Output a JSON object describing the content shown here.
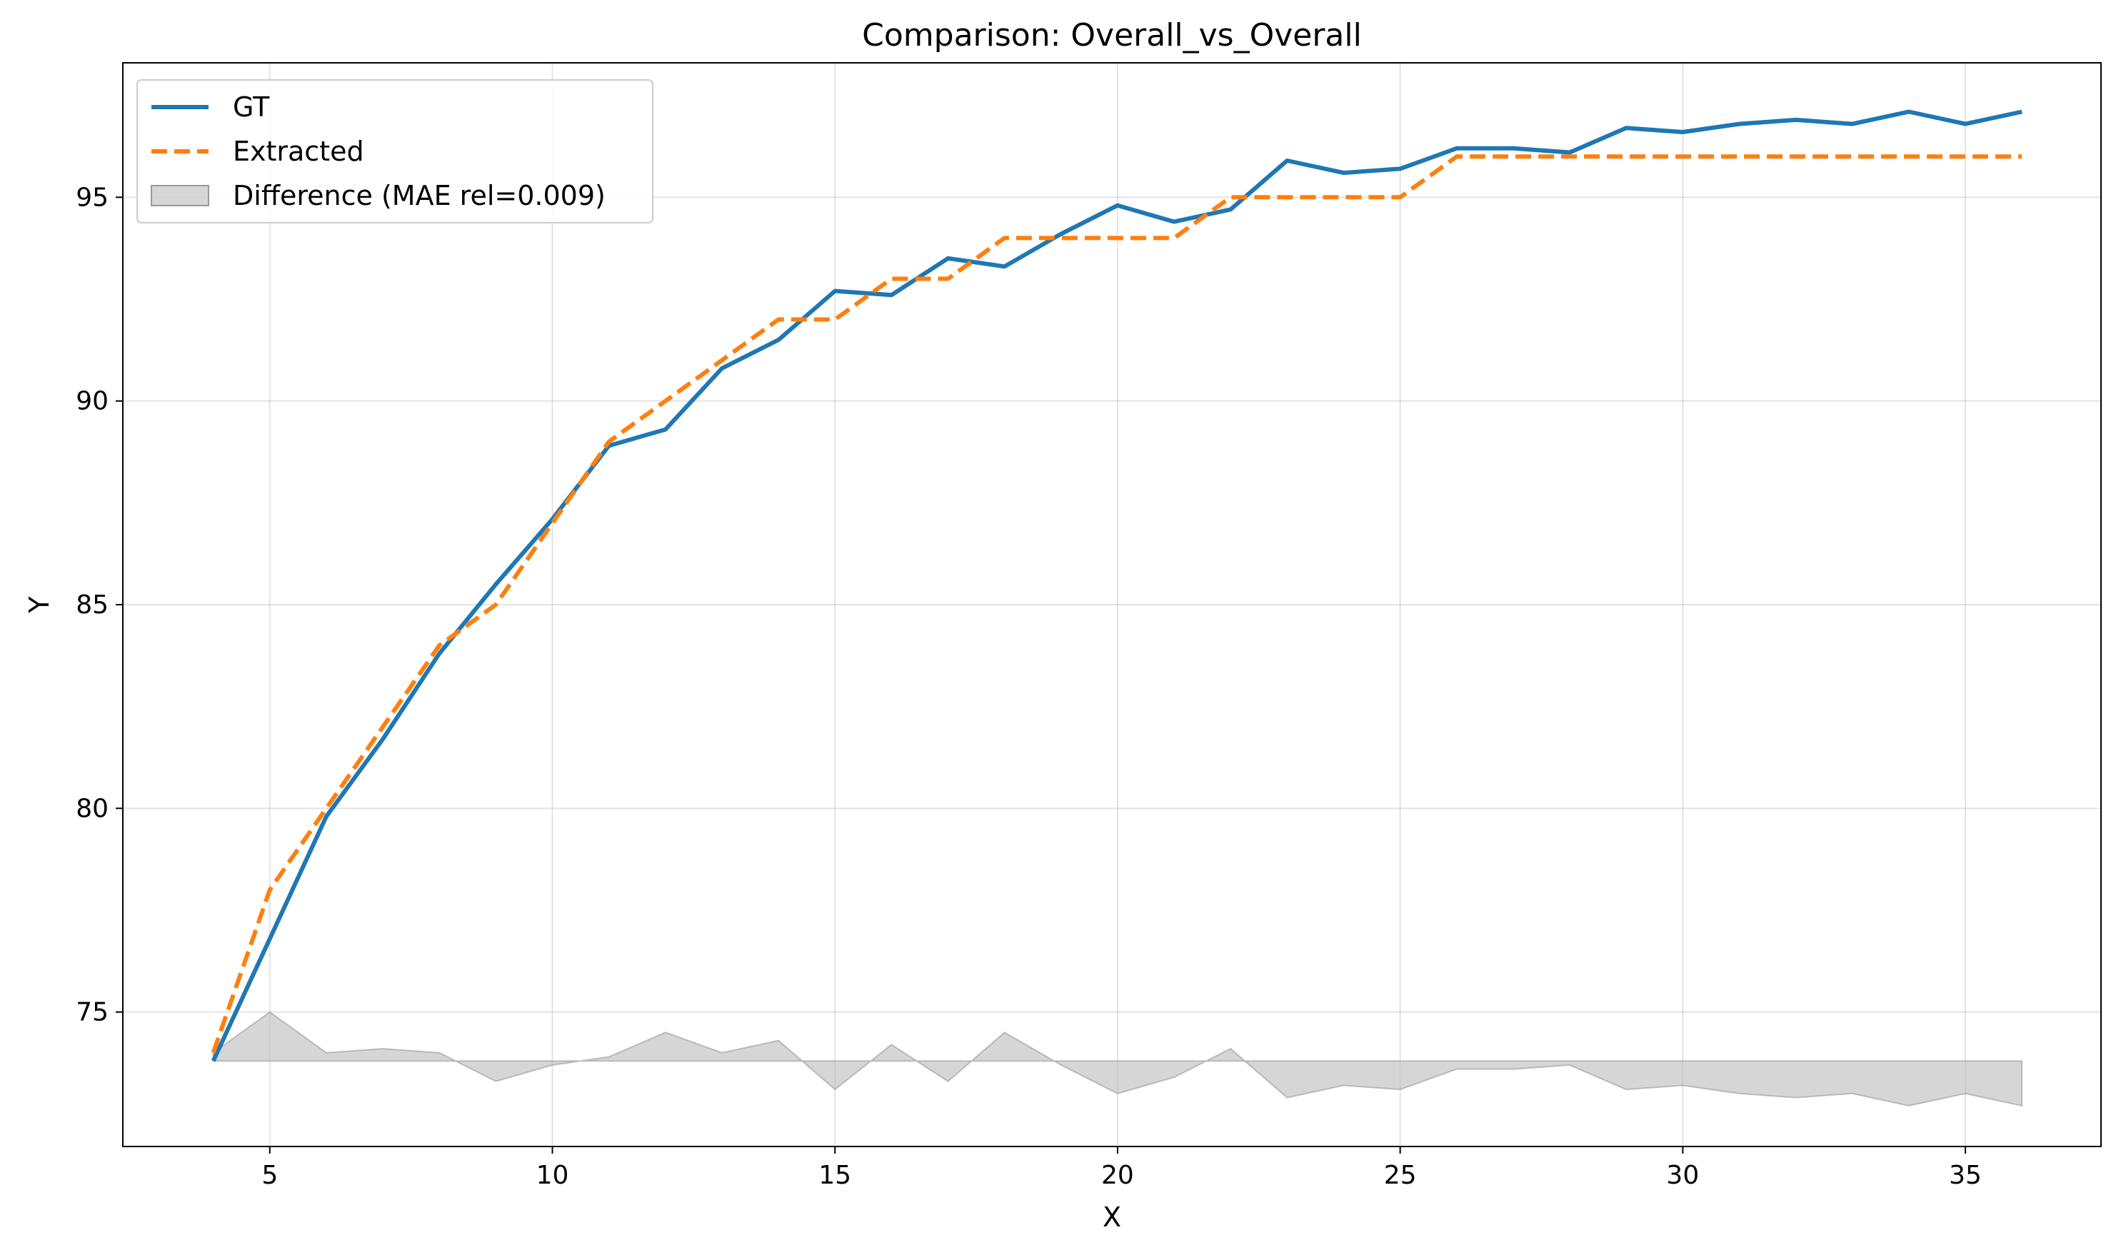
{
  "chart_data": {
    "type": "line",
    "title": "Comparison: Overall_vs_Overall",
    "xlabel": "X",
    "ylabel": "Y",
    "xlim": [
      2.4,
      37.4
    ],
    "ylim": [
      71.7,
      98.3
    ],
    "xticks": [
      5,
      10,
      15,
      20,
      25,
      30,
      35
    ],
    "yticks": [
      75,
      80,
      85,
      90,
      95
    ],
    "grid": true,
    "legend_position": "top-left",
    "x": [
      4,
      5,
      6,
      7,
      8,
      9,
      10,
      11,
      12,
      13,
      14,
      15,
      16,
      17,
      18,
      19,
      20,
      21,
      22,
      23,
      24,
      25,
      26,
      27,
      28,
      29,
      30,
      31,
      32,
      33,
      34,
      35,
      36
    ],
    "series": [
      {
        "name": "GT",
        "style": "solid",
        "color": "#1f77b4",
        "values": [
          73.8,
          76.8,
          79.8,
          81.7,
          83.8,
          85.5,
          87.1,
          88.9,
          89.3,
          90.8,
          91.5,
          92.7,
          92.6,
          93.5,
          93.3,
          94.1,
          94.8,
          94.4,
          94.7,
          95.9,
          95.6,
          95.7,
          96.2,
          96.2,
          96.1,
          96.7,
          96.6,
          96.8,
          96.9,
          96.8,
          97.1,
          96.8,
          97.1
        ]
      },
      {
        "name": "Extracted",
        "style": "dashed",
        "color": "#ff7f0e",
        "values": [
          74,
          78,
          80,
          82,
          84,
          85,
          87,
          89,
          90,
          91,
          92,
          92,
          93,
          93,
          94,
          94,
          94,
          94,
          95,
          95,
          95,
          95,
          96,
          96,
          96,
          96,
          96,
          96,
          96,
          96,
          96,
          96,
          96
        ]
      }
    ],
    "difference": {
      "name": "Difference (MAE rel=0.009)",
      "color": "#bbbbbb",
      "baseline": 73.8
    }
  }
}
